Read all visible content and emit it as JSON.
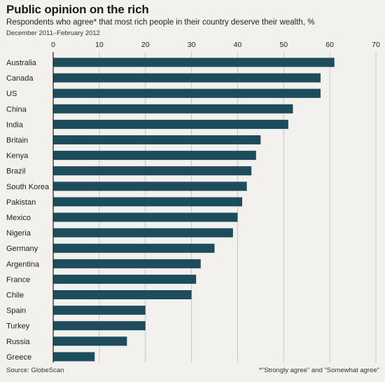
{
  "header": {
    "title": "Public opinion on the rich",
    "subtitle": "Respondents who agree* that most rich people in their country deserve their wealth, %",
    "dates": "December 2011–February 2012"
  },
  "footer": {
    "source": "Source: GlobeScan",
    "footnote": "*\"Strongly agree\" and \"Somewhat agree\""
  },
  "colors": {
    "bar": "#1d4d5c",
    "grid": "#c9c7c2",
    "axis": "#1d1d1d"
  },
  "chart_data": {
    "type": "bar",
    "orientation": "horizontal",
    "categories": [
      "Australia",
      "Canada",
      "US",
      "China",
      "India",
      "Britain",
      "Kenya",
      "Brazil",
      "South Korea",
      "Pakistan",
      "Mexico",
      "Nigeria",
      "Germany",
      "Argentina",
      "France",
      "Chile",
      "Spain",
      "Turkey",
      "Russia",
      "Greece"
    ],
    "values": [
      61,
      58,
      58,
      52,
      51,
      45,
      44,
      43,
      42,
      41,
      40,
      39,
      35,
      32,
      31,
      30,
      20,
      20,
      16,
      9
    ],
    "xlim": [
      0,
      70
    ],
    "xticks": [
      0,
      10,
      20,
      30,
      40,
      50,
      60,
      70
    ],
    "grid": true,
    "axis_position": "top"
  }
}
